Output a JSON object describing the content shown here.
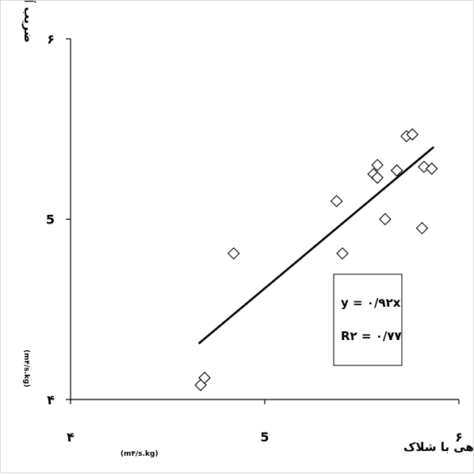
{
  "chart_data": {
    "type": "scatter",
    "xlabel": "ضریب آکوستیک قبل از پوشش دهی با شلاک",
    "xlabel_unit": "(m۴/s.kg)",
    "ylabel": "ضریب آکوستیک بعداز پوشش دهی با شلاک",
    "ylabel_unit": "(m۴/s.kg)",
    "xlim": [
      4,
      6
    ],
    "ylim": [
      4,
      6
    ],
    "x_ticks": [
      {
        "value": 4,
        "label": "۴"
      },
      {
        "value": 5,
        "label": "5"
      },
      {
        "value": 6,
        "label": "۶"
      }
    ],
    "y_ticks": [
      {
        "value": 4,
        "label": "۴"
      },
      {
        "value": 5,
        "label": "5"
      },
      {
        "value": 6,
        "label": "۶"
      }
    ],
    "marker": "diamond",
    "points": [
      {
        "x": 4.67,
        "y": 4.08
      },
      {
        "x": 4.69,
        "y": 4.12
      },
      {
        "x": 4.84,
        "y": 4.81
      },
      {
        "x": 5.37,
        "y": 5.1
      },
      {
        "x": 5.4,
        "y": 4.81
      },
      {
        "x": 5.56,
        "y": 5.25
      },
      {
        "x": 5.58,
        "y": 5.3
      },
      {
        "x": 5.58,
        "y": 5.23
      },
      {
        "x": 5.62,
        "y": 5.0
      },
      {
        "x": 5.68,
        "y": 5.27
      },
      {
        "x": 5.73,
        "y": 5.46
      },
      {
        "x": 5.76,
        "y": 5.47
      },
      {
        "x": 5.81,
        "y": 4.95
      },
      {
        "x": 5.82,
        "y": 5.29
      },
      {
        "x": 5.86,
        "y": 5.28
      }
    ],
    "trendline": {
      "x": [
        4.66,
        5.87
      ],
      "y": [
        4.31,
        5.4
      ]
    },
    "equation_lines": [
      "y = ۰/۹۲x",
      "R۲ = ۰/۷۷"
    ],
    "grid": false
  }
}
